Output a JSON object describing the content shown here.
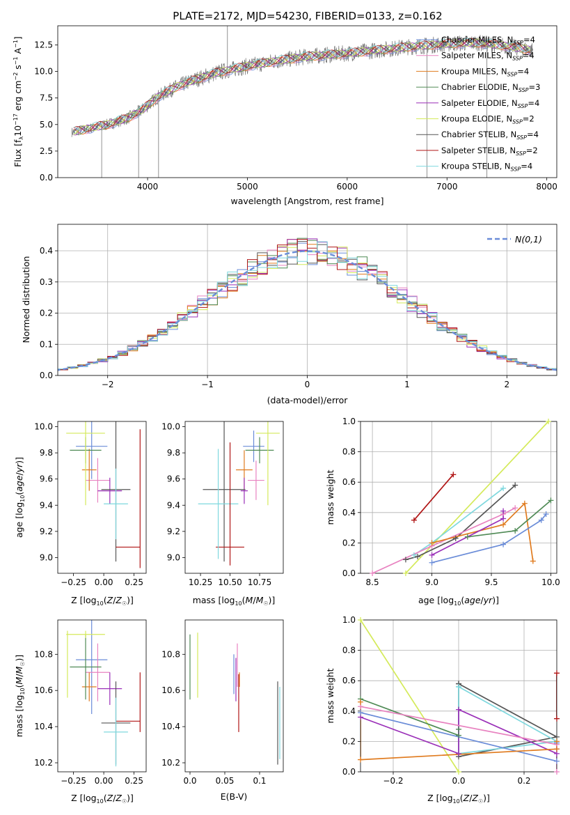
{
  "figure_title": "PLATE=2172, MJD=54230, FIBERID=0133, z=0.162",
  "colors": {
    "chabrier_miles": "#6a8cd8",
    "salpeter_miles": "#e882c0",
    "kroupa_miles": "#e07b1f",
    "chabrier_elodie": "#4f8a55",
    "salpeter_elodie": "#9a2fb8",
    "kroupa_elodie": "#d4ea5a",
    "chabrier_stelib": "#555555",
    "salpeter_stelib": "#b01515",
    "kroupa_stelib": "#7fd8de",
    "data": "#777777"
  },
  "chart_data": [
    {
      "id": "spectrum",
      "type": "line",
      "title": "PLATE=2172, MJD=54230, FIBERID=0133, z=0.162",
      "xlabel": "wavelength [Angstrom, rest frame]",
      "ylabel": "Flux [f_λ 10^-17 erg cm^-2 s^-1 A^-1]",
      "xlim": [
        3100,
        8100
      ],
      "ylim": [
        0,
        14.3
      ],
      "xticks": [
        4000,
        5000,
        6000,
        7000,
        8000
      ],
      "yticks": [
        0.0,
        2.5,
        5.0,
        7.5,
        10.0,
        12.5
      ],
      "legend_position": "right",
      "continuum": {
        "x": [
          3250,
          3400,
          3600,
          3800,
          3950,
          4100,
          4300,
          4500,
          4700,
          5000,
          5300,
          5600,
          6000,
          6300,
          6600,
          7000,
          7300,
          7600,
          7850
        ],
        "y": [
          4.3,
          4.6,
          5.0,
          5.6,
          6.4,
          7.6,
          8.6,
          9.3,
          9.9,
          10.5,
          11.0,
          11.4,
          11.7,
          12.0,
          12.3,
          12.6,
          12.7,
          12.4,
          12.0
        ]
      },
      "series": [
        {
          "name": "Chabrier MILES",
          "nssp": "4"
        },
        {
          "name": "Salpeter MILES",
          "nssp": "4"
        },
        {
          "name": "Kroupa MILES",
          "nssp": "4"
        },
        {
          "name": "Chabrier ELODIE",
          "nssp": "3"
        },
        {
          "name": "Salpeter ELODIE",
          "nssp": "4"
        },
        {
          "name": "Kroupa ELODIE",
          "nssp": "2"
        },
        {
          "name": "Chabrier STELIB",
          "nssp": "4"
        },
        {
          "name": "Salpeter STELIB",
          "nssp": "2"
        },
        {
          "name": "Kroupa STELIB",
          "nssp": "4"
        }
      ]
    },
    {
      "id": "residuals",
      "type": "histogram",
      "xlabel": "(data-model)/error",
      "ylabel": "Normed distribution",
      "xlim": [
        -2.5,
        2.5
      ],
      "ylim": [
        0,
        0.485
      ],
      "xticks": [
        -2,
        -1,
        0,
        1,
        2
      ],
      "yticks": [
        0.0,
        0.1,
        0.2,
        0.3,
        0.4
      ],
      "grid": true,
      "legend": "N(0,1)",
      "legend_position": "top-right",
      "bin_width": 0.1
    },
    {
      "id": "age_vs_Z",
      "type": "errorbar",
      "xlabel": "Z [log10(Z/Z☉)]",
      "ylabel": "age [log10(age/yr)]",
      "xlim": [
        -0.38,
        0.35
      ],
      "ylim": [
        8.88,
        10.04
      ],
      "xticks": [
        -0.25,
        0.0,
        0.25
      ],
      "yticks": [
        9.0,
        9.2,
        9.4,
        9.6,
        9.8,
        10.0
      ],
      "points": [
        {
          "series": "Chabrier MILES",
          "x": -0.1,
          "xerr": 0.13,
          "y": 9.85,
          "yerr": 0.25
        },
        {
          "series": "Salpeter MILES",
          "x": -0.05,
          "xerr": 0.1,
          "y": 9.59,
          "yerr": 0.17
        },
        {
          "series": "Kroupa MILES",
          "x": -0.12,
          "xerr": 0.06,
          "y": 9.67,
          "yerr": 0.16
        },
        {
          "series": "Chabrier ELODIE",
          "x": -0.15,
          "xerr": 0.13,
          "y": 9.82,
          "yerr": 0.1
        },
        {
          "series": "Salpeter ELODIE",
          "x": 0.05,
          "xerr": 0.1,
          "y": 9.51,
          "yerr": 0.1
        },
        {
          "series": "Kroupa ELODIE",
          "x": -0.15,
          "xerr": 0.16,
          "y": 9.95,
          "yerr": 0.55
        },
        {
          "series": "Chabrier STELIB",
          "x": 0.1,
          "xerr": 0.12,
          "y": 9.52,
          "yerr": 0.55
        },
        {
          "series": "Salpeter STELIB",
          "x": 0.2,
          "xerr": 0.1,
          "y": 9.08,
          "yerr": 0.0
        },
        {
          "series": "Kroupa STELIB",
          "x": 0.1,
          "xerr": 0.1,
          "y": 9.41,
          "yerr": 0.27
        }
      ],
      "extra_segments": [
        {
          "series": "Salpeter STELIB",
          "x1": 0.3,
          "y1": 8.92,
          "x2": 0.3,
          "y2": 9.98
        }
      ]
    },
    {
      "id": "age_vs_mass",
      "type": "errorbar",
      "xlabel": "mass [log10(M/M☉)]",
      "ylabel": "",
      "xlim": [
        10.12,
        10.95
      ],
      "ylim": [
        8.88,
        10.04
      ],
      "xticks": [
        10.25,
        10.5,
        10.75
      ],
      "yticks": [
        9.0,
        9.2,
        9.4,
        9.6,
        9.8,
        10.0
      ],
      "points": [
        {
          "series": "Chabrier MILES",
          "x": 10.7,
          "xerr": 0.09,
          "y": 9.85,
          "yerr": 0.12
        },
        {
          "series": "Salpeter MILES",
          "x": 10.72,
          "xerr": 0.07,
          "y": 9.59,
          "yerr": 0.15
        },
        {
          "series": "Kroupa MILES",
          "x": 10.62,
          "xerr": 0.07,
          "y": 9.67,
          "yerr": 0.15
        },
        {
          "series": "Chabrier ELODIE",
          "x": 10.75,
          "xerr": 0.12,
          "y": 9.82,
          "yerr": 0.1
        },
        {
          "series": "Salpeter ELODIE",
          "x": 10.62,
          "xerr": 0.03,
          "y": 9.51,
          "yerr": 0.1
        },
        {
          "series": "Kroupa ELODIE",
          "x": 10.82,
          "xerr": 0.1,
          "y": 9.95,
          "yerr": 0.55
        },
        {
          "series": "Chabrier STELIB",
          "x": 10.45,
          "xerr": 0.18,
          "y": 9.52,
          "yerr": 0.55
        },
        {
          "series": "Salpeter STELIB",
          "x": 10.5,
          "xerr": 0.12,
          "y": 9.08,
          "yerr": 0.0
        },
        {
          "series": "Kroupa STELIB",
          "x": 10.4,
          "xerr": 0.17,
          "y": 9.41,
          "yerr": 0.42
        }
      ],
      "extra_segments": [
        {
          "series": "Salpeter STELIB",
          "x1": 10.5,
          "y1": 8.94,
          "x2": 10.5,
          "y2": 9.88
        }
      ]
    },
    {
      "id": "mass_weight_vs_age",
      "type": "line",
      "xlabel": "age [log10(age/yr)]",
      "ylabel": "mass weight",
      "xlim": [
        8.4,
        10.05
      ],
      "ylim": [
        0.0,
        1.0
      ],
      "xticks": [
        8.5,
        9.0,
        9.5,
        10.0
      ],
      "yticks": [
        0.0,
        0.2,
        0.4,
        0.6,
        0.8,
        1.0
      ],
      "grid": true,
      "series": [
        {
          "name": "Salpeter STELIB",
          "x": [
            8.85,
            9.18
          ],
          "y": [
            0.35,
            0.65
          ]
        },
        {
          "name": "Kroupa ELODIE",
          "x": [
            8.78,
            9.98
          ],
          "y": [
            0.0,
            1.0
          ]
        },
        {
          "name": "Chabrier STELIB",
          "x": [
            8.78,
            8.88,
            9.2,
            9.7
          ],
          "y": [
            0.09,
            0.11,
            0.23,
            0.58
          ]
        },
        {
          "name": "Kroupa STELIB",
          "x": [
            8.85,
            9.0,
            9.6
          ],
          "y": [
            0.12,
            0.2,
            0.56
          ]
        },
        {
          "name": "Salpeter MILES",
          "x": [
            8.5,
            9.0,
            9.6,
            9.7
          ],
          "y": [
            0.0,
            0.18,
            0.39,
            0.43
          ]
        },
        {
          "name": "Kroupa MILES",
          "x": [
            9.0,
            9.6,
            9.78,
            9.85
          ],
          "y": [
            0.2,
            0.32,
            0.46,
            0.08
          ]
        },
        {
          "name": "Chabrier ELODIE",
          "x": [
            9.3,
            9.7,
            10.0
          ],
          "y": [
            0.24,
            0.28,
            0.48
          ]
        },
        {
          "name": "Salpeter ELODIE",
          "x": [
            9.0,
            9.6,
            9.6
          ],
          "y": [
            0.12,
            0.36,
            0.41
          ]
        },
        {
          "name": "Chabrier MILES",
          "x": [
            9.0,
            9.6,
            9.92,
            9.96
          ],
          "y": [
            0.07,
            0.19,
            0.35,
            0.39
          ]
        }
      ]
    },
    {
      "id": "mass_vs_Z",
      "type": "errorbar",
      "xlabel": "Z [log10(Z/Z☉)]",
      "ylabel": "mass [log10(M/M☉)]",
      "xlim": [
        -0.38,
        0.35
      ],
      "ylim": [
        10.15,
        10.99
      ],
      "xticks": [
        -0.25,
        0.0,
        0.25
      ],
      "yticks": [
        10.2,
        10.4,
        10.6,
        10.8
      ],
      "points": [
        {
          "series": "Chabrier MILES",
          "x": -0.1,
          "xerr": 0.13,
          "y": 10.77,
          "yerr": 0.3
        },
        {
          "series": "Salpeter MILES",
          "x": -0.05,
          "xerr": 0.1,
          "y": 10.7,
          "yerr": 0.16
        },
        {
          "series": "Kroupa MILES",
          "x": -0.12,
          "xerr": 0.06,
          "y": 10.62,
          "yerr": 0.08
        },
        {
          "series": "Chabrier ELODIE",
          "x": -0.15,
          "xerr": 0.13,
          "y": 10.73,
          "yerr": 0.18
        },
        {
          "series": "Salpeter ELODIE",
          "x": 0.05,
          "xerr": 0.1,
          "y": 10.61,
          "yerr": 0.09
        },
        {
          "series": "Kroupa ELODIE",
          "x": -0.15,
          "xerr": 0.16,
          "y": 10.91,
          "yerr": 0.02
        },
        {
          "series": "Chabrier STELIB",
          "x": 0.1,
          "xerr": 0.12,
          "y": 10.42,
          "yerr": 0.23
        },
        {
          "series": "Salpeter STELIB",
          "x": 0.2,
          "xerr": 0.1,
          "y": 10.43,
          "yerr": 0.0
        },
        {
          "series": "Kroupa STELIB",
          "x": 0.1,
          "xerr": 0.1,
          "y": 10.37,
          "yerr": 0.19
        }
      ],
      "extra_segments": [
        {
          "series": "Salpeter STELIB",
          "x1": 0.3,
          "y1": 10.37,
          "x2": 0.3,
          "y2": 10.7
        },
        {
          "series": "Kroupa ELODIE",
          "x1": -0.3,
          "y1": 10.56,
          "x2": -0.3,
          "y2": 10.93
        }
      ]
    },
    {
      "id": "mass_vs_ebv",
      "type": "errorbar",
      "xlabel": "E(B-V)",
      "ylabel": "",
      "xlim": [
        -0.007,
        0.134
      ],
      "ylim": [
        10.15,
        10.99
      ],
      "xticks": [
        0.0,
        0.05,
        0.1
      ],
      "yticks": [
        10.2,
        10.4,
        10.6,
        10.8
      ],
      "points": [
        {
          "series": "Chabrier MILES",
          "x": 0.063,
          "xerr": 0,
          "y": 10.69,
          "yerr": 0.11
        },
        {
          "series": "Salpeter MILES",
          "x": 0.068,
          "xerr": 0,
          "y": 10.74,
          "yerr": 0.12
        },
        {
          "series": "Kroupa MILES",
          "x": 0.071,
          "xerr": 0,
          "y": 10.66,
          "yerr": 0.04
        },
        {
          "series": "Chabrier ELODIE",
          "x": 0.0,
          "xerr": 0,
          "y": 10.73,
          "yerr": 0.18
        },
        {
          "series": "Salpeter ELODIE",
          "x": 0.066,
          "xerr": 0,
          "y": 10.66,
          "yerr": 0.12
        },
        {
          "series": "Kroupa ELODIE",
          "x": 0.011,
          "xerr": 0,
          "y": 10.74,
          "yerr": 0.18
        },
        {
          "series": "Chabrier STELIB",
          "x": 0.126,
          "xerr": 0,
          "y": 10.42,
          "yerr": 0.23
        },
        {
          "series": "Salpeter STELIB",
          "x": 0.07,
          "xerr": 0,
          "y": 10.53,
          "yerr": 0.16
        },
        {
          "series": "Kroupa STELIB",
          "x": 0.129,
          "xerr": 0,
          "y": 10.42,
          "yerr": 0.2
        }
      ]
    },
    {
      "id": "mass_weight_vs_Z",
      "type": "line",
      "xlabel": "Z [log10(Z/Z☉)]",
      "ylabel": "mass weight",
      "xlim": [
        -0.3,
        0.3
      ],
      "ylim": [
        0.0,
        1.0
      ],
      "xticks": [
        -0.2,
        0.0,
        0.2
      ],
      "yticks": [
        0.0,
        0.2,
        0.4,
        0.6,
        0.8,
        1.0
      ],
      "grid": true,
      "series": [
        {
          "name": "Kroupa ELODIE",
          "x": [
            -0.3,
            0.0
          ],
          "y": [
            1.0,
            0.0
          ]
        },
        {
          "name": "Chabrier STELIB",
          "x": [
            0.0,
            0.3,
            0.0,
            0.0
          ],
          "y": [
            0.58,
            0.23,
            0.1,
            0.58
          ]
        },
        {
          "name": "Kroupa STELIB",
          "x": [
            0.0,
            0.3,
            0.0,
            0.0
          ],
          "y": [
            0.56,
            0.2,
            0.12,
            0.56
          ]
        },
        {
          "name": "Chabrier ELODIE",
          "x": [
            -0.3,
            0.0,
            0.0
          ],
          "y": [
            0.48,
            0.24,
            0.28
          ]
        },
        {
          "name": "Salpeter ELODIE",
          "x": [
            -0.3,
            0.0,
            0.0,
            0.3,
            0.3
          ],
          "y": [
            0.36,
            0.12,
            0.41,
            0.12,
            0.15
          ]
        },
        {
          "name": "Chabrier MILES",
          "x": [
            -0.3,
            0.3,
            0.3
          ],
          "y": [
            0.39,
            0.07,
            0.19
          ]
        },
        {
          "name": "Salpeter MILES",
          "x": [
            -0.3,
            0.3,
            0.3
          ],
          "y": [
            0.43,
            0.18,
            0.0
          ]
        },
        {
          "name": "Kroupa MILES",
          "x": [
            -0.3,
            -0.3,
            0.3,
            0.3
          ],
          "y": [
            0.46,
            0.08,
            0.15,
            0.2
          ]
        },
        {
          "name": "Salpeter STELIB",
          "x": [
            0.3,
            0.3
          ],
          "y": [
            0.35,
            0.65
          ]
        }
      ]
    }
  ]
}
